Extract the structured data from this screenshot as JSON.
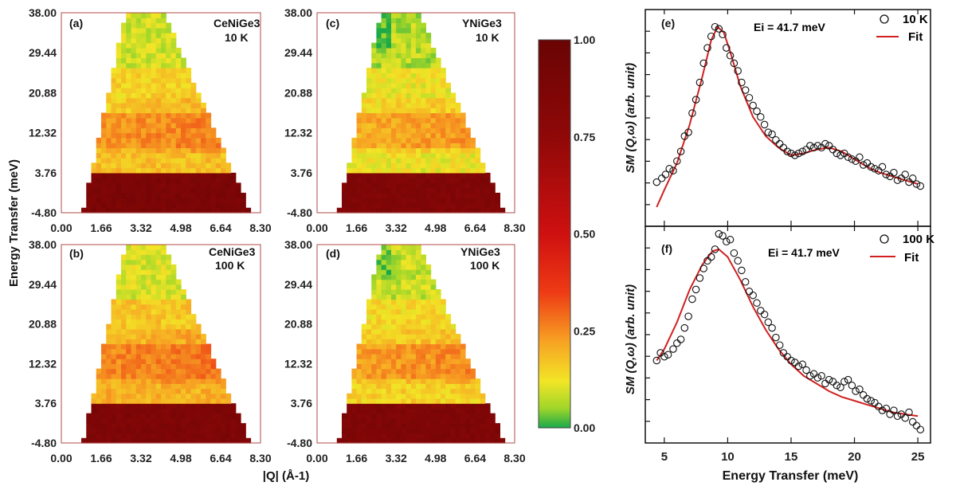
{
  "chart_data": [
    {
      "type": "heatmap",
      "panel": "(a)",
      "sample": "CeNiGe3",
      "temperature": "10 K",
      "ylabel": "Energy Transfer (meV)",
      "xlabel": "|Q| (Å-1)",
      "x_ticks": [
        "0.00",
        "1.66",
        "3.32",
        "4.98",
        "6.64",
        "8.30"
      ],
      "y_ticks": [
        "-4.80",
        "3.76",
        "12.32",
        "20.88",
        "29.44",
        "38.00"
      ],
      "xlim": [
        0,
        8.3
      ],
      "ylim": [
        -4.8,
        38
      ],
      "bands": [
        {
          "e_lo": -4.8,
          "e_hi": 4.0,
          "intensity": 0.88
        },
        {
          "e_lo": 4.0,
          "e_hi": 9.0,
          "intensity": 0.18
        },
        {
          "e_lo": 9.0,
          "e_hi": 17.0,
          "intensity": 0.22
        },
        {
          "e_lo": 17.0,
          "e_hi": 26.0,
          "intensity": 0.15
        },
        {
          "e_lo": 26.0,
          "e_hi": 38.0,
          "intensity": 0.09
        }
      ]
    },
    {
      "type": "heatmap",
      "panel": "(b)",
      "sample": "CeNiGe3",
      "temperature": "100 K",
      "x_ticks": [
        "0.00",
        "1.66",
        "3.32",
        "4.98",
        "6.64",
        "8.30"
      ],
      "y_ticks": [
        "-4.80",
        "3.76",
        "12.32",
        "20.88",
        "29.44",
        "38.00"
      ],
      "xlim": [
        0,
        8.3
      ],
      "ylim": [
        -4.8,
        38
      ],
      "bands": [
        {
          "e_lo": -4.8,
          "e_hi": 4.0,
          "intensity": 0.86
        },
        {
          "e_lo": 4.0,
          "e_hi": 9.0,
          "intensity": 0.2
        },
        {
          "e_lo": 9.0,
          "e_hi": 17.0,
          "intensity": 0.24
        },
        {
          "e_lo": 17.0,
          "e_hi": 26.0,
          "intensity": 0.17
        },
        {
          "e_lo": 26.0,
          "e_hi": 38.0,
          "intensity": 0.1
        }
      ]
    },
    {
      "type": "heatmap",
      "panel": "(c)",
      "sample": "YNiGe3",
      "temperature": "10 K",
      "x_ticks": [
        "0.00",
        "1.66",
        "3.32",
        "4.98",
        "6.64",
        "8.30"
      ],
      "y_ticks": [
        "-4.80",
        "3.76",
        "12.32",
        "20.88",
        "29.44",
        "38.00"
      ],
      "xlim": [
        0,
        8.3
      ],
      "ylim": [
        -4.8,
        38
      ],
      "bands": [
        {
          "e_lo": -4.8,
          "e_hi": 4.0,
          "intensity": 0.85
        },
        {
          "e_lo": 4.0,
          "e_hi": 9.0,
          "intensity": 0.12
        },
        {
          "e_lo": 9.0,
          "e_hi": 17.0,
          "intensity": 0.19
        },
        {
          "e_lo": 17.0,
          "e_hi": 26.0,
          "intensity": 0.12
        },
        {
          "e_lo": 26.0,
          "e_hi": 38.0,
          "intensity": 0.07
        }
      ]
    },
    {
      "type": "heatmap",
      "panel": "(d)",
      "sample": "YNiGe3",
      "temperature": "100 K",
      "x_ticks": [
        "0.00",
        "1.66",
        "3.32",
        "4.98",
        "6.64",
        "8.30"
      ],
      "y_ticks": [
        "-4.80",
        "3.76",
        "12.32",
        "20.88",
        "29.44",
        "38.00"
      ],
      "xlim": [
        0,
        8.3
      ],
      "ylim": [
        -4.8,
        38
      ],
      "bands": [
        {
          "e_lo": -4.8,
          "e_hi": 4.0,
          "intensity": 0.86
        },
        {
          "e_lo": 4.0,
          "e_hi": 9.0,
          "intensity": 0.15
        },
        {
          "e_lo": 9.0,
          "e_hi": 17.0,
          "intensity": 0.21
        },
        {
          "e_lo": 17.0,
          "e_hi": 26.0,
          "intensity": 0.14
        },
        {
          "e_lo": 26.0,
          "e_hi": 38.0,
          "intensity": 0.08
        }
      ]
    },
    {
      "type": "colorbar",
      "ticks": [
        "0.00",
        "0.25",
        "0.50",
        "0.75",
        "1.00"
      ],
      "range": [
        0,
        1
      ]
    },
    {
      "type": "scatter",
      "panel": "(e)",
      "annotation": "Ei = 41.7 meV",
      "legend": {
        "data": "10 K",
        "fit": "Fit"
      },
      "ylabel": "SM (Q,ω) (arb. unit)",
      "xlim": [
        3.5,
        26
      ],
      "ylim": [
        -5,
        108
      ],
      "data_points": [
        [
          4.4,
          18
        ],
        [
          4.8,
          20
        ],
        [
          5.1,
          22
        ],
        [
          5.4,
          25
        ],
        [
          5.7,
          24
        ],
        [
          6.0,
          29
        ],
        [
          6.3,
          34
        ],
        [
          6.6,
          42
        ],
        [
          6.9,
          44
        ],
        [
          7.2,
          54
        ],
        [
          7.5,
          61
        ],
        [
          7.8,
          70
        ],
        [
          8.1,
          80
        ],
        [
          8.4,
          88
        ],
        [
          8.7,
          94
        ],
        [
          9.0,
          99
        ],
        [
          9.3,
          98
        ],
        [
          9.6,
          95
        ],
        [
          9.9,
          88
        ],
        [
          10.2,
          84
        ],
        [
          10.5,
          80
        ],
        [
          10.8,
          76
        ],
        [
          11.1,
          70
        ],
        [
          11.4,
          66
        ],
        [
          11.7,
          62
        ],
        [
          12.0,
          58
        ],
        [
          12.3,
          55
        ],
        [
          12.6,
          52
        ],
        [
          12.9,
          48
        ],
        [
          13.2,
          44
        ],
        [
          13.5,
          43
        ],
        [
          13.8,
          40
        ],
        [
          14.1,
          38
        ],
        [
          14.4,
          36
        ],
        [
          14.7,
          34
        ],
        [
          15.0,
          33
        ],
        [
          15.3,
          32
        ],
        [
          15.6,
          33
        ],
        [
          15.9,
          34
        ],
        [
          16.2,
          35
        ],
        [
          16.5,
          37
        ],
        [
          16.8,
          36
        ],
        [
          17.1,
          37
        ],
        [
          17.4,
          36
        ],
        [
          17.7,
          38
        ],
        [
          18.0,
          37
        ],
        [
          18.3,
          35
        ],
        [
          18.6,
          33
        ],
        [
          18.9,
          32
        ],
        [
          19.2,
          33
        ],
        [
          19.5,
          31
        ],
        [
          19.8,
          30
        ],
        [
          20.1,
          29
        ],
        [
          20.4,
          31
        ],
        [
          20.7,
          27
        ],
        [
          21.0,
          28
        ],
        [
          21.3,
          26
        ],
        [
          21.6,
          25
        ],
        [
          21.9,
          24
        ],
        [
          22.2,
          26
        ],
        [
          22.5,
          22
        ],
        [
          22.8,
          21
        ],
        [
          23.1,
          23
        ],
        [
          23.4,
          19
        ],
        [
          23.7,
          20
        ],
        [
          24.0,
          22
        ],
        [
          24.3,
          18
        ],
        [
          24.6,
          20
        ],
        [
          24.9,
          17
        ],
        [
          25.2,
          16
        ]
      ],
      "fit_points": [
        [
          4.4,
          5
        ],
        [
          5.0,
          14
        ],
        [
          6.0,
          28
        ],
        [
          7.0,
          48
        ],
        [
          8.0,
          73
        ],
        [
          8.7,
          92
        ],
        [
          9.2,
          99
        ],
        [
          9.7,
          96
        ],
        [
          10.2,
          86
        ],
        [
          11.0,
          68
        ],
        [
          12.0,
          52
        ],
        [
          13.0,
          42
        ],
        [
          14.0,
          36
        ],
        [
          15.0,
          32
        ],
        [
          16.0,
          33
        ],
        [
          17.0,
          35
        ],
        [
          18.0,
          36
        ],
        [
          19.0,
          34
        ],
        [
          20.0,
          30
        ],
        [
          21.0,
          26
        ],
        [
          22.0,
          23
        ],
        [
          23.0,
          21
        ],
        [
          24.0,
          19
        ],
        [
          25.0,
          17
        ]
      ]
    },
    {
      "type": "scatter",
      "panel": "(f)",
      "annotation": "Ei = 41.7 meV",
      "legend": {
        "data": "100 K",
        "fit": "Fit"
      },
      "ylabel": "SM (Q,ω) (arb. unit)",
      "xlabel": "Energy Transfer (meV)",
      "x_ticks": [
        "5",
        "10",
        "15",
        "20",
        "25"
      ],
      "xlim": [
        3.5,
        26
      ],
      "ylim": [
        -5,
        108
      ],
      "data_points": [
        [
          4.4,
          38
        ],
        [
          4.7,
          42
        ],
        [
          5.0,
          40
        ],
        [
          5.3,
          41
        ],
        [
          5.7,
          44
        ],
        [
          6.0,
          47
        ],
        [
          6.3,
          49
        ],
        [
          6.6,
          55
        ],
        [
          6.9,
          61
        ],
        [
          7.2,
          70
        ],
        [
          7.5,
          75
        ],
        [
          7.8,
          81
        ],
        [
          8.1,
          86
        ],
        [
          8.4,
          90
        ],
        [
          8.7,
          92
        ],
        [
          9.0,
          96
        ],
        [
          9.3,
          104
        ],
        [
          9.6,
          103
        ],
        [
          9.9,
          100
        ],
        [
          10.2,
          101
        ],
        [
          10.5,
          94
        ],
        [
          10.8,
          90
        ],
        [
          11.1,
          85
        ],
        [
          11.4,
          79
        ],
        [
          11.7,
          74
        ],
        [
          12.0,
          72
        ],
        [
          12.3,
          68
        ],
        [
          12.6,
          64
        ],
        [
          12.9,
          62
        ],
        [
          13.2,
          58
        ],
        [
          13.5,
          55
        ],
        [
          13.8,
          50
        ],
        [
          14.1,
          46
        ],
        [
          14.4,
          42
        ],
        [
          14.7,
          40
        ],
        [
          15.0,
          38
        ],
        [
          15.3,
          37
        ],
        [
          15.6,
          35
        ],
        [
          15.9,
          36
        ],
        [
          16.2,
          33
        ],
        [
          16.5,
          30
        ],
        [
          16.8,
          31
        ],
        [
          17.1,
          29
        ],
        [
          17.4,
          30
        ],
        [
          17.7,
          26
        ],
        [
          18.0,
          28
        ],
        [
          18.3,
          27
        ],
        [
          18.6,
          25
        ],
        [
          18.9,
          24
        ],
        [
          19.2,
          27
        ],
        [
          19.5,
          28
        ],
        [
          19.8,
          25
        ],
        [
          20.1,
          22
        ],
        [
          20.4,
          23
        ],
        [
          20.7,
          20
        ],
        [
          21.0,
          18
        ],
        [
          21.3,
          17
        ],
        [
          21.6,
          16
        ],
        [
          21.9,
          14
        ],
        [
          22.2,
          12
        ],
        [
          22.5,
          13
        ],
        [
          22.8,
          10
        ],
        [
          23.1,
          12
        ],
        [
          23.4,
          9
        ],
        [
          23.7,
          10
        ],
        [
          24.0,
          8
        ],
        [
          24.3,
          11
        ],
        [
          24.6,
          6
        ],
        [
          24.9,
          4
        ],
        [
          25.2,
          2
        ]
      ],
      "fit_points": [
        [
          4.4,
          38
        ],
        [
          5.0,
          44
        ],
        [
          6.0,
          58
        ],
        [
          7.0,
          75
        ],
        [
          8.0,
          88
        ],
        [
          8.8,
          95
        ],
        [
          9.3,
          96
        ],
        [
          10.0,
          92
        ],
        [
          11.0,
          80
        ],
        [
          12.0,
          66
        ],
        [
          13.0,
          54
        ],
        [
          14.0,
          44
        ],
        [
          15.0,
          36
        ],
        [
          16.0,
          30
        ],
        [
          17.0,
          26
        ],
        [
          18.0,
          22
        ],
        [
          19.0,
          19
        ],
        [
          20.0,
          17
        ],
        [
          21.0,
          15
        ],
        [
          22.0,
          13
        ],
        [
          23.0,
          11
        ],
        [
          24.0,
          10
        ],
        [
          25.0,
          9
        ]
      ]
    }
  ]
}
